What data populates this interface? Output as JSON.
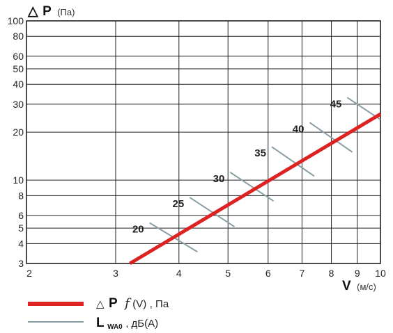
{
  "chart_data": {
    "type": "line",
    "x_axis": {
      "label": "V",
      "unit": "(м/с)",
      "scale": "log",
      "range": [
        2,
        10
      ],
      "ticks": [
        "2",
        "3",
        "4",
        "5",
        "6",
        "7",
        "8",
        "9",
        "10"
      ]
    },
    "y_axis": {
      "label": "P",
      "symbol": "△",
      "unit": "(Па)",
      "scale": "log",
      "range": [
        3,
        100
      ],
      "ticks": [
        "3",
        "4",
        "5",
        "6",
        "8",
        "10",
        "20",
        "30",
        "40",
        "50",
        "60",
        "80",
        "100"
      ]
    },
    "grid": true,
    "series": [
      {
        "name": "P f(V), Па",
        "color": "#dd2222",
        "x": [
          3.2,
          10
        ],
        "y": [
          3,
          26
        ]
      }
    ],
    "noise_lines": {
      "color": "#8a9ea6",
      "items": [
        {
          "label": "20",
          "x": [
            3.5,
            4.35
          ],
          "y": [
            5.4,
            3.55
          ]
        },
        {
          "label": "25",
          "x": [
            4.2,
            5.15
          ],
          "y": [
            7.8,
            5.1
          ]
        },
        {
          "label": "30",
          "x": [
            5.05,
            6.15
          ],
          "y": [
            11.2,
            7.4
          ]
        },
        {
          "label": "35",
          "x": [
            6.1,
            7.4
          ],
          "y": [
            16.2,
            10.6
          ]
        },
        {
          "label": "40",
          "x": [
            7.25,
            8.8
          ],
          "y": [
            23,
            15
          ]
        },
        {
          "label": "45",
          "x": [
            8.6,
            10
          ],
          "y": [
            33,
            24
          ]
        }
      ]
    },
    "legend": {
      "placement": "bottom-left",
      "items": [
        {
          "symbol": "△",
          "bold": "P",
          "func": "f",
          "arg": "(V)",
          "unit": ", Па",
          "color": "#dd2222"
        },
        {
          "bold": "L",
          "sub": "WA0",
          "unit": ", дБ(А)",
          "color": "#8a9ea6"
        }
      ]
    }
  }
}
